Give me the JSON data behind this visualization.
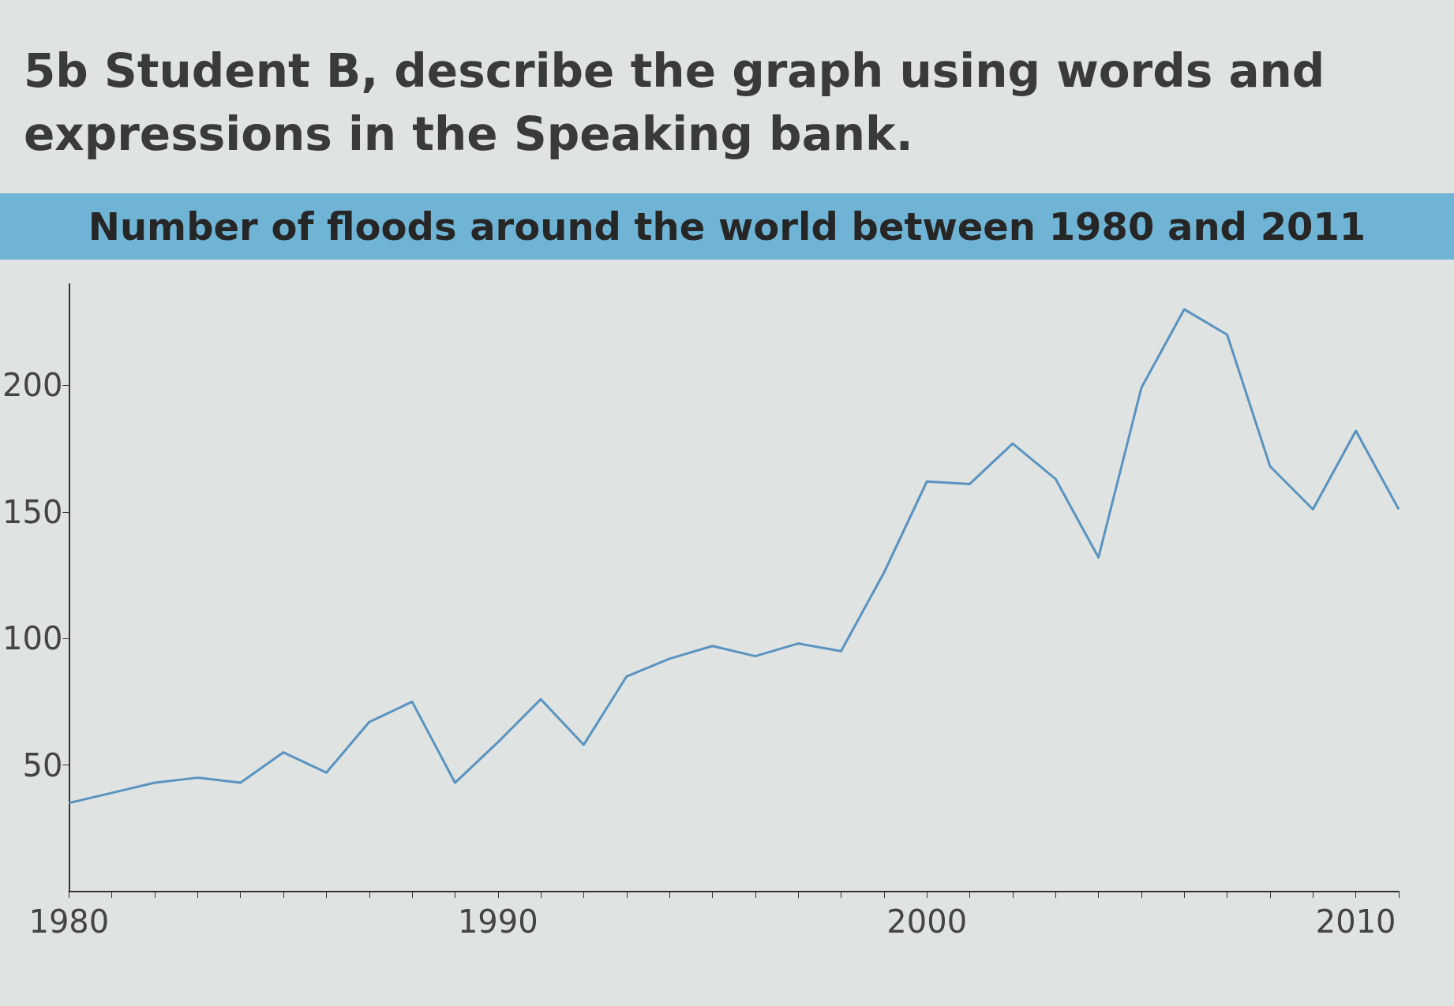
{
  "chart_data": {
    "type": "line",
    "title": "Number of floods around the world between 1980 and 2011",
    "annotations": [
      "5b Student B, describe the graph using words and expressions in the Speaking bank."
    ],
    "x": [
      1980,
      1981,
      1982,
      1983,
      1984,
      1985,
      1986,
      1987,
      1988,
      1989,
      1990,
      1991,
      1992,
      1993,
      1994,
      1995,
      1996,
      1997,
      1998,
      1999,
      2000,
      2001,
      2002,
      2003,
      2004,
      2005,
      2006,
      2007,
      2008,
      2009,
      2010,
      2011
    ],
    "series": [
      {
        "color": "#5a93bf",
        "values": [
          35,
          39,
          43,
          45,
          43,
          55,
          47,
          67,
          75,
          43,
          59,
          76,
          58,
          85,
          92,
          97,
          93,
          98,
          95,
          126,
          162,
          161,
          177,
          163,
          132,
          199,
          230,
          220,
          168,
          151,
          182,
          151
        ]
      }
    ],
    "xlim": [
      1980,
      2011
    ],
    "xticks": [
      1980,
      {
        "value": 1981,
        "label": null
      },
      {
        "value": 1982,
        "label": null
      },
      {
        "value": 1983,
        "label": null
      },
      {
        "value": 1984,
        "label": null
      },
      {
        "value": 1985,
        "label": null
      },
      {
        "value": 1986,
        "label": null
      },
      {
        "value": 1987,
        "label": null
      },
      {
        "value": 1988,
        "label": null
      },
      {
        "value": 1989,
        "label": null
      },
      1990,
      {
        "value": 1991,
        "label": null
      },
      {
        "value": 1992,
        "label": null
      },
      {
        "value": 1993,
        "label": null
      },
      {
        "value": 1994,
        "label": null
      },
      {
        "value": 1995,
        "label": null
      },
      {
        "value": 1996,
        "label": null
      },
      {
        "value": 1997,
        "label": null
      },
      {
        "value": 1998,
        "label": null
      },
      {
        "value": 1999,
        "label": null
      },
      2000,
      {
        "value": 2001,
        "label": null
      },
      {
        "value": 2002,
        "label": null
      },
      {
        "value": 2003,
        "label": null
      },
      {
        "value": 2004,
        "label": null
      },
      {
        "value": 2005,
        "label": null
      },
      {
        "value": 2006,
        "label": null
      },
      {
        "value": 2007,
        "label": null
      },
      {
        "value": 2008,
        "label": null
      },
      {
        "value": 2009,
        "label": null
      },
      2010,
      {
        "value": 2011,
        "label": null
      }
    ],
    "ylim": [
      0,
      240
    ],
    "yticks": [
      50,
      100,
      150,
      200
    ],
    "line_style": "solid"
  }
}
